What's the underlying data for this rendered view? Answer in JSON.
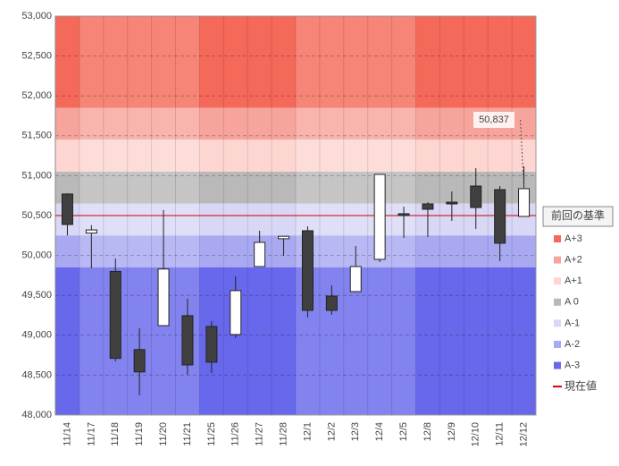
{
  "chart_data": {
    "type": "candlestick",
    "categories": [
      "11/14",
      "11/17",
      "11/18",
      "11/19",
      "11/20",
      "11/21",
      "11/25",
      "11/26",
      "11/27",
      "11/28",
      "12/1",
      "12/2",
      "12/3",
      "12/4",
      "12/5",
      "12/8",
      "12/9",
      "12/10",
      "12/11",
      "12/12"
    ],
    "open": [
      50770,
      50280,
      49800,
      48820,
      49120,
      49245,
      49110,
      49009,
      49861,
      50210,
      50310,
      49491,
      49547,
      49951,
      50523,
      50646,
      50668,
      50870,
      50825,
      50489
    ],
    "high": [
      50780,
      50380,
      49962,
      49088,
      50570,
      49458,
      49178,
      49738,
      50310,
      50242,
      50366,
      49626,
      50119,
      51016,
      50612,
      50668,
      50803,
      51094,
      50870,
      51117
    ],
    "low": [
      50250,
      49840,
      48673,
      48247,
      49120,
      48505,
      48527,
      48964,
      49861,
      49996,
      49222,
      49256,
      49547,
      49917,
      50220,
      50231,
      50433,
      50332,
      49929,
      50489
    ],
    "close": [
      50388,
      50320,
      48710,
      48540,
      49830,
      48628,
      48662,
      49559,
      50164,
      50240,
      49312,
      49312,
      49861,
      51016,
      50500,
      50579,
      50646,
      50601,
      50153,
      50837
    ],
    "up_color": "#ffffff",
    "down_color": "#404040",
    "ylim": [
      48000,
      53000
    ],
    "yticks": [
      {
        "value": 48000,
        "label": "48,000"
      },
      {
        "value": 48500,
        "label": "48,500"
      },
      {
        "value": 49000,
        "label": "49,000"
      },
      {
        "value": 49500,
        "label": "49,500"
      },
      {
        "value": 50000,
        "label": "50,000"
      },
      {
        "value": 50500,
        "label": "50,500"
      },
      {
        "value": 51000,
        "label": "51,000"
      },
      {
        "value": 51500,
        "label": "51,500"
      },
      {
        "value": 52000,
        "label": "52,000"
      },
      {
        "value": 52500,
        "label": "52,500"
      },
      {
        "value": 53000,
        "label": "53,000"
      }
    ],
    "grid": true,
    "legend_title": "前回の基準",
    "bands": [
      {
        "name": "A+3",
        "color": "#f4695a",
        "from": 51850,
        "to": 53000
      },
      {
        "name": "A+2",
        "color": "#f7a49c",
        "from": 51450,
        "to": 51850
      },
      {
        "name": "A+1",
        "color": "#fdd6d2",
        "from": 51050,
        "to": 51450
      },
      {
        "name": "A 0",
        "color": "#b9b9b9",
        "from": 50650,
        "to": 51050
      },
      {
        "name": "A-1",
        "color": "#d8d8f6",
        "from": 50250,
        "to": 50650
      },
      {
        "name": "A-2",
        "color": "#a9a9f2",
        "from": 49850,
        "to": 50250
      },
      {
        "name": "A-3",
        "color": "#6868ec",
        "from": 48000,
        "to": 49850
      }
    ],
    "current": {
      "name": "現在値",
      "value": 50500,
      "color": "#cc0000"
    },
    "annotation": {
      "value": 50837,
      "label": "50,837"
    }
  }
}
